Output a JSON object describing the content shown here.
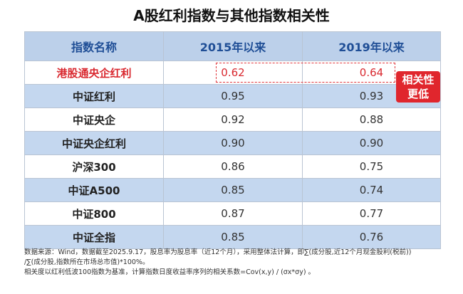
{
  "title": "A股红利指数与其他指数相关性",
  "table": {
    "headers": [
      "指数名称",
      "2015年以来",
      "2019年以来"
    ],
    "rows": [
      {
        "name": "港股通央企红利",
        "v2015": "0.62",
        "v2019": "0.64"
      },
      {
        "name": "中证红利",
        "v2015": "0.95",
        "v2019": "0.93"
      },
      {
        "name": "中证央企",
        "v2015": "0.92",
        "v2019": "0.88"
      },
      {
        "name": "中证央企红利",
        "v2015": "0.90",
        "v2019": "0.90"
      },
      {
        "name": "沪深300",
        "v2015": "0.86",
        "v2019": "0.75"
      },
      {
        "name": "中证A500",
        "v2015": "0.85",
        "v2019": "0.74"
      },
      {
        "name": "中证800",
        "v2015": "0.87",
        "v2019": "0.77"
      },
      {
        "name": "中证全指",
        "v2015": "0.85",
        "v2019": "0.76"
      }
    ]
  },
  "callout": {
    "line1": "相关性",
    "line2": "更低"
  },
  "notes": {
    "line1": "数据来源：Wind，数据截至2025.9.17，股息率为股息率（近12个月），采用整体法计算，即∑(成分股,近12个月现金股利(税前))",
    "line2": "/∑(成分股,指数所在市场总市值)*100%。",
    "line3": "相关度以红利低波100指数为基准，计算指数日度收益率序列的相关系数=Cov(x,y) / (σx*σy) 。"
  },
  "colors": {
    "header_bg": "#bcd0ea",
    "header_text": "#1f4e96",
    "stripe": "#c4d7ef",
    "highlight": "#d9282f"
  }
}
